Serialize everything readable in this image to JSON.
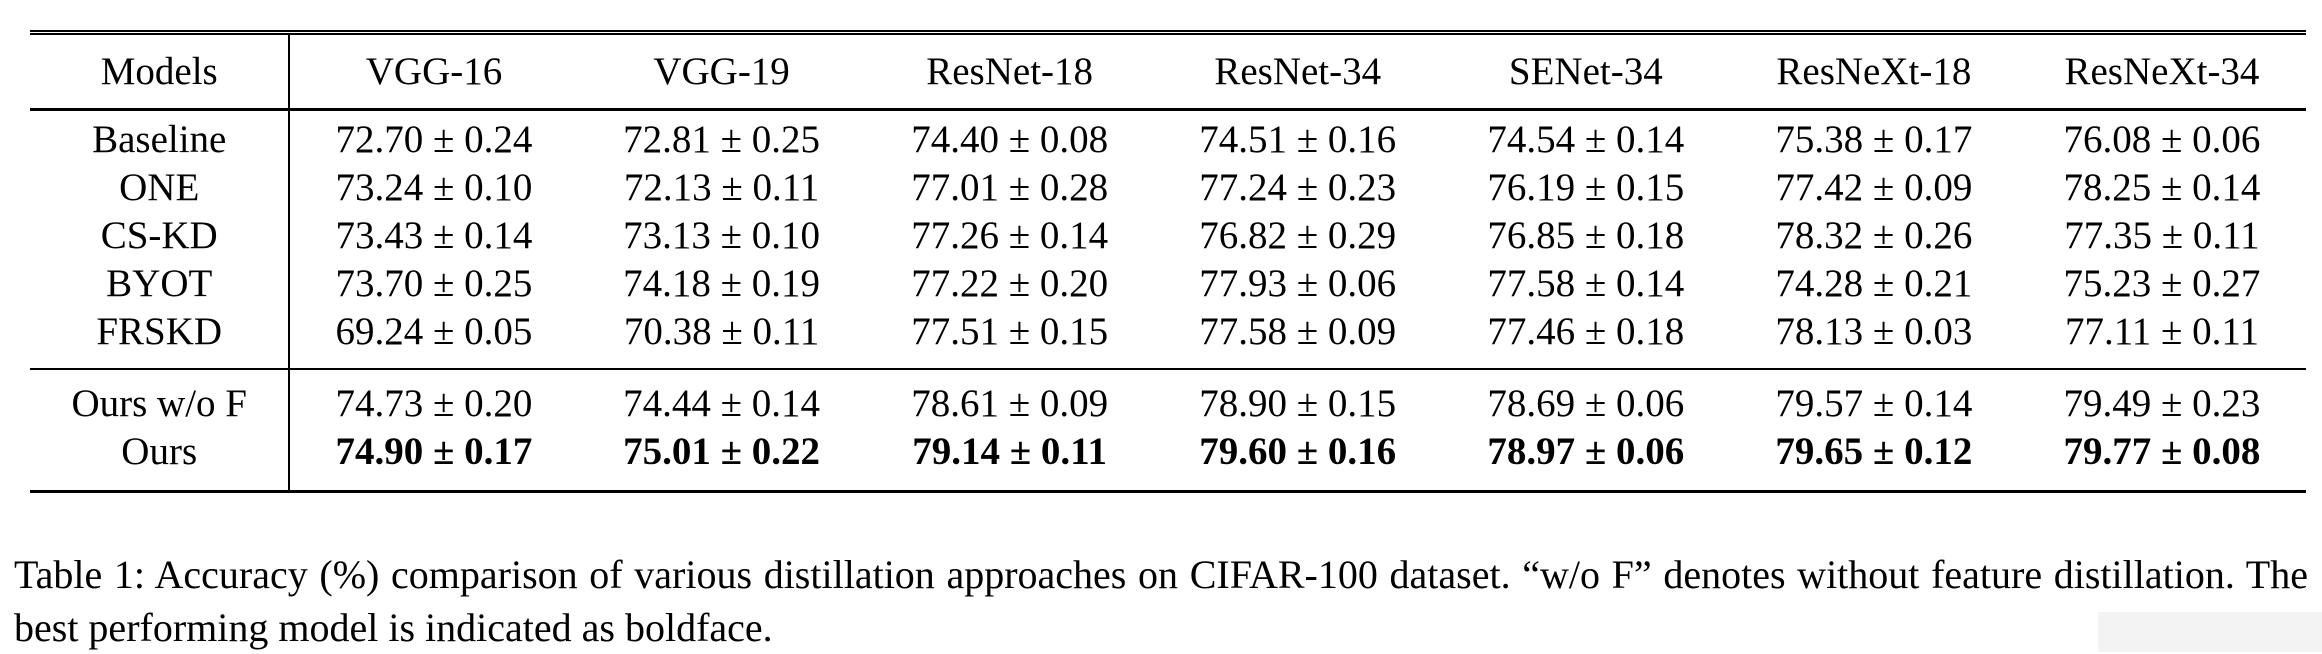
{
  "table": {
    "header": [
      "Models",
      "VGG-16",
      "VGG-19",
      "ResNet-18",
      "ResNet-34",
      "SENet-34",
      "ResNeXt-18",
      "ResNeXt-34"
    ],
    "rows": [
      {
        "model": "Baseline",
        "values": [
          "72.70 ± 0.24",
          "72.81 ± 0.25",
          "74.40 ± 0.08",
          "74.51 ± 0.16",
          "74.54 ± 0.14",
          "75.38 ± 0.17",
          "76.08 ± 0.06"
        ]
      },
      {
        "model": "ONE",
        "values": [
          "73.24 ± 0.10",
          "72.13 ± 0.11",
          "77.01 ± 0.28",
          "77.24 ± 0.23",
          "76.19 ± 0.15",
          "77.42 ± 0.09",
          "78.25 ± 0.14"
        ]
      },
      {
        "model": "CS-KD",
        "values": [
          "73.43 ± 0.14",
          "73.13 ± 0.10",
          "77.26 ± 0.14",
          "76.82 ± 0.29",
          "76.85 ± 0.18",
          "78.32 ± 0.26",
          "77.35 ± 0.11"
        ]
      },
      {
        "model": "BYOT",
        "values": [
          "73.70 ± 0.25",
          "74.18 ± 0.19",
          "77.22 ± 0.20",
          "77.93 ± 0.06",
          "77.58 ± 0.14",
          "74.28 ± 0.21",
          "75.23 ± 0.27"
        ]
      },
      {
        "model": "FRSKD",
        "values": [
          "69.24 ± 0.05",
          "70.38 ± 0.11",
          "77.51 ± 0.15",
          "77.58 ± 0.09",
          "77.46 ± 0.18",
          "78.13 ± 0.03",
          "77.11 ± 0.11"
        ]
      },
      {
        "model": "Ours w/o F",
        "values": [
          "74.73 ± 0.20",
          "74.44 ± 0.14",
          "78.61 ± 0.09",
          "78.90 ± 0.15",
          "78.69 ± 0.06",
          "79.57 ± 0.14",
          "79.49 ± 0.23"
        ]
      },
      {
        "model": "Ours",
        "values": [
          "74.90 ± 0.17",
          "75.01 ± 0.22",
          "79.14 ± 0.11",
          "79.60 ± 0.16",
          "78.97 ± 0.06",
          "79.65 ± 0.12",
          "79.77 ± 0.08"
        ]
      }
    ]
  },
  "caption": "Table 1: Accuracy (%) comparison of various distillation approaches on CIFAR-100 dataset. “w/o F” denotes without feature distillation. The best performing model is indicated as boldface."
}
